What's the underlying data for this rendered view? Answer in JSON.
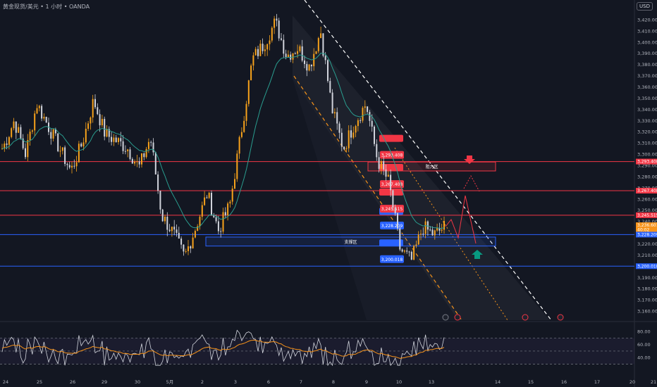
{
  "header": {
    "symbol_title": "黄金现货/美元",
    "timeframe": "1 小时",
    "broker": "OANDA",
    "separator": "•",
    "currency": "USD"
  },
  "colors": {
    "background": "#131722",
    "bull_candle": "#f7a21b",
    "bear_candle": "#d1d4dc",
    "moving_average": "#2a9d8f",
    "resistance_line": "#f23645",
    "support_line": "#2962ff",
    "channel_upper": "#ffffff",
    "channel_lower": "#f7931a",
    "rsi_line": "#d1d4dc",
    "rsi_ma": "#f7931a",
    "arrow_down": "#f23645",
    "arrow_up": "#089981",
    "projection": "#f23645"
  },
  "chart_data": [
    {
      "type": "candlestick",
      "symbol": "XAUUSD",
      "ylim": [
        3155,
        3425
      ],
      "y_ticks": [
        3160,
        3170,
        3180,
        3190,
        3200,
        3210,
        3220,
        3230,
        3240,
        3250,
        3260,
        3270,
        3280,
        3290,
        3300,
        3310,
        3320,
        3330,
        3340,
        3350,
        3360,
        3370,
        3380,
        3390,
        3400,
        3410,
        3420
      ],
      "x_ticks": [
        "24",
        "25",
        "26",
        "29",
        "30",
        "5月",
        "2",
        "3",
        "6",
        "7",
        "8",
        "9",
        "10",
        "13",
        "14",
        "15",
        "16",
        "17",
        "20",
        "21"
      ],
      "approx_close_path": [
        {
          "x": "24",
          "y": 3305
        },
        {
          "x": "24",
          "y": 3330
        },
        {
          "x": "25",
          "y": 3300
        },
        {
          "x": "25",
          "y": 3345
        },
        {
          "x": "25",
          "y": 3325
        },
        {
          "x": "26",
          "y": 3305
        },
        {
          "x": "26",
          "y": 3285
        },
        {
          "x": "29",
          "y": 3310
        },
        {
          "x": "29",
          "y": 3348
        },
        {
          "x": "29",
          "y": 3318
        },
        {
          "x": "30",
          "y": 3312
        },
        {
          "x": "30",
          "y": 3305
        },
        {
          "x": "30",
          "y": 3288
        },
        {
          "x": "5月",
          "y": 3315
        },
        {
          "x": "5月",
          "y": 3245
        },
        {
          "x": "2",
          "y": 3230
        },
        {
          "x": "2",
          "y": 3208
        },
        {
          "x": "2",
          "y": 3235
        },
        {
          "x": "3",
          "y": 3265
        },
        {
          "x": "3",
          "y": 3232
        },
        {
          "x": "3",
          "y": 3255
        },
        {
          "x": "6",
          "y": 3320
        },
        {
          "x": "6",
          "y": 3385
        },
        {
          "x": "7",
          "y": 3398
        },
        {
          "x": "7",
          "y": 3418
        },
        {
          "x": "7",
          "y": 3388
        },
        {
          "x": "8",
          "y": 3395
        },
        {
          "x": "8",
          "y": 3378
        },
        {
          "x": "8",
          "y": 3410
        },
        {
          "x": "9",
          "y": 3340
        },
        {
          "x": "9",
          "y": 3305
        },
        {
          "x": "9",
          "y": 3328
        },
        {
          "x": "10",
          "y": 3345
        },
        {
          "x": "10",
          "y": 3295
        },
        {
          "x": "10",
          "y": 3275
        },
        {
          "x": "10",
          "y": 3215
        },
        {
          "x": "13",
          "y": 3205
        },
        {
          "x": "13",
          "y": 3235
        },
        {
          "x": "13",
          "y": 3228
        },
        {
          "x": "13",
          "y": 3236
        }
      ],
      "horizontal_levels": [
        {
          "label": "3,293.408",
          "value": 3293.408,
          "kind": "resistance"
        },
        {
          "label": "3,267.408",
          "value": 3267.408,
          "kind": "resistance"
        },
        {
          "label": "3,245.515",
          "value": 3245.515,
          "kind": "resistance"
        },
        {
          "label": "3,228.209",
          "value": 3228.209,
          "kind": "support"
        },
        {
          "label": "3,200.018",
          "value": 3200.018,
          "kind": "support"
        }
      ],
      "price_axis_tags": [
        {
          "label": "3,293.408",
          "value": 3293.408,
          "kind": "resistance"
        },
        {
          "label": "3,267.408",
          "value": 3267.408,
          "kind": "resistance"
        },
        {
          "label": "3,245.515",
          "value": 3245.515,
          "kind": "resistance"
        },
        {
          "label": "3,236.601",
          "sub": "40:02",
          "value": 3236.601,
          "kind": "current"
        },
        {
          "label": "3,228.209",
          "value": 3228.209,
          "kind": "support"
        },
        {
          "label": "3,200.018",
          "value": 3200.018,
          "kind": "support"
        }
      ],
      "zones": [
        {
          "label": "阻力区",
          "low": 3285,
          "high": 3293,
          "kind": "resistance"
        },
        {
          "label": "支撑区",
          "low": 3218,
          "high": 3226,
          "kind": "support"
        }
      ]
    },
    {
      "type": "line",
      "name": "RSI",
      "ylim": [
        25,
        90
      ],
      "y_ticks": [
        40,
        60,
        80
      ],
      "y_tick_labels": [
        "40.00",
        "60.00",
        "80.00"
      ],
      "reference_lines": [
        70,
        50,
        30
      ]
    }
  ]
}
